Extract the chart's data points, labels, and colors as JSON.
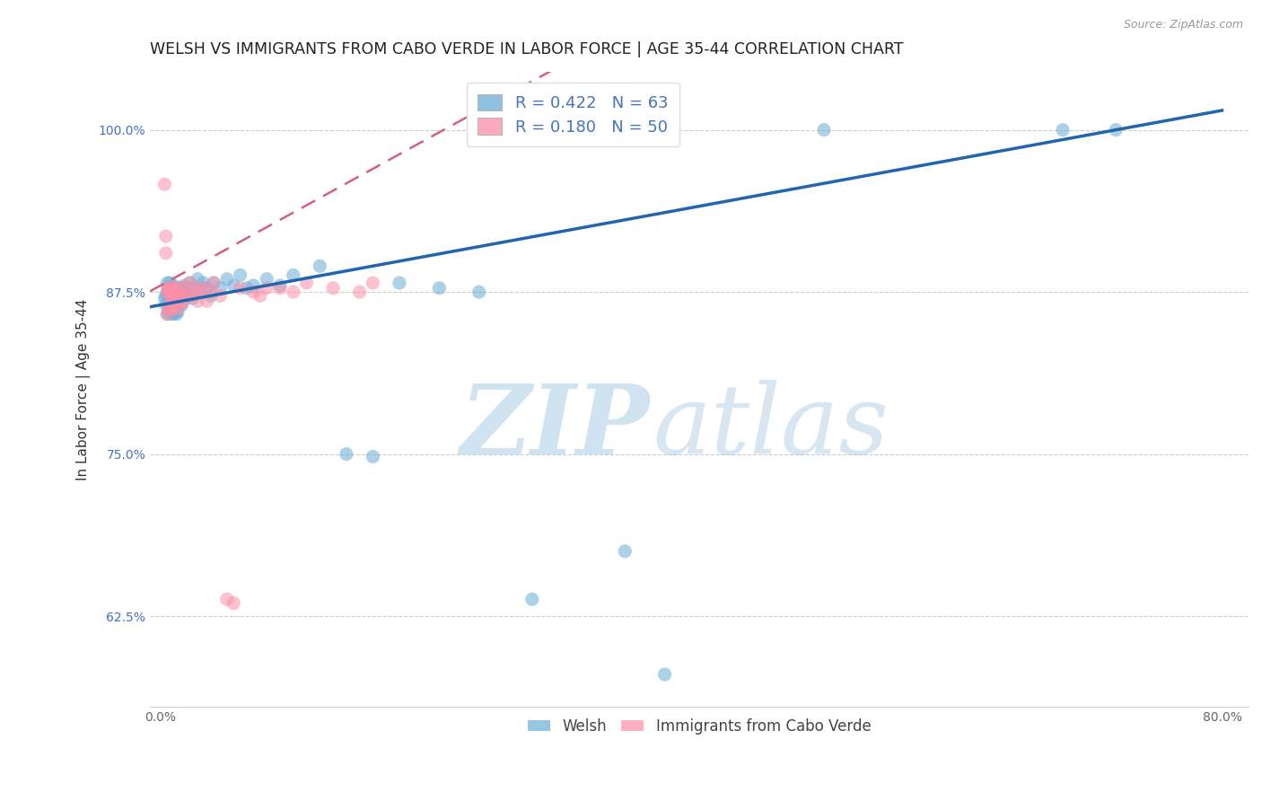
{
  "title": "WELSH VS IMMIGRANTS FROM CABO VERDE IN LABOR FORCE | AGE 35-44 CORRELATION CHART",
  "source": "Source: ZipAtlas.com",
  "ylabel": "In Labor Force | Age 35-44",
  "xlim": [
    -0.008,
    0.82
  ],
  "ylim": [
    0.555,
    1.045
  ],
  "yticks": [
    0.625,
    0.75,
    0.875,
    1.0
  ],
  "ytick_labels": [
    "62.5%",
    "75.0%",
    "87.5%",
    "100.0%"
  ],
  "xticks": [
    0.0,
    0.1,
    0.2,
    0.3,
    0.4,
    0.5,
    0.6,
    0.7,
    0.8
  ],
  "xtick_labels": [
    "0.0%",
    "",
    "",
    "",
    "",
    "",
    "",
    "",
    "80.0%"
  ],
  "welsh_color": "#6baed6",
  "cabo_color": "#fc8fa8",
  "welsh_line_color": "#2166ac",
  "cabo_line_color": "#d46080",
  "welsh_R": 0.422,
  "welsh_N": 63,
  "cabo_R": 0.18,
  "cabo_N": 50,
  "background_color": "#ffffff",
  "grid_color": "#cccccc",
  "title_fontsize": 12.5,
  "axis_label_fontsize": 11,
  "tick_fontsize": 10,
  "legend_fontsize": 13,
  "watermark_color": "#ccdff0",
  "source_color": "#999999",
  "legend_text_color": "#4472c4",
  "ytick_color": "#4472c4",
  "welsh_x_manual": [
    0.003,
    0.004,
    0.004,
    0.005,
    0.005,
    0.005,
    0.006,
    0.006,
    0.006,
    0.007,
    0.007,
    0.007,
    0.008,
    0.008,
    0.008,
    0.009,
    0.009,
    0.01,
    0.01,
    0.01,
    0.011,
    0.011,
    0.012,
    0.012,
    0.013,
    0.013,
    0.014,
    0.015,
    0.016,
    0.017,
    0.018,
    0.019,
    0.02,
    0.022,
    0.024,
    0.026,
    0.028,
    0.03,
    0.032,
    0.035,
    0.038,
    0.04,
    0.045,
    0.05,
    0.055,
    0.06,
    0.065,
    0.07,
    0.08,
    0.09,
    0.1,
    0.12,
    0.14,
    0.16,
    0.18,
    0.21,
    0.24,
    0.28,
    0.35,
    0.38,
    0.5,
    0.68,
    0.72
  ],
  "welsh_y_manual": [
    0.87,
    0.865,
    0.872,
    0.858,
    0.875,
    0.882,
    0.86,
    0.872,
    0.878,
    0.865,
    0.875,
    0.882,
    0.858,
    0.868,
    0.878,
    0.862,
    0.875,
    0.858,
    0.87,
    0.88,
    0.862,
    0.875,
    0.858,
    0.872,
    0.86,
    0.875,
    0.87,
    0.878,
    0.865,
    0.875,
    0.88,
    0.87,
    0.878,
    0.882,
    0.87,
    0.878,
    0.885,
    0.875,
    0.882,
    0.878,
    0.872,
    0.882,
    0.878,
    0.885,
    0.88,
    0.888,
    0.878,
    0.88,
    0.885,
    0.88,
    0.888,
    0.895,
    0.75,
    0.748,
    0.882,
    0.878,
    0.875,
    0.638,
    0.675,
    0.58,
    1.0,
    1.0,
    1.0
  ],
  "cabo_x_manual": [
    0.003,
    0.004,
    0.004,
    0.005,
    0.005,
    0.006,
    0.006,
    0.006,
    0.007,
    0.007,
    0.008,
    0.008,
    0.008,
    0.009,
    0.009,
    0.01,
    0.01,
    0.011,
    0.011,
    0.012,
    0.012,
    0.013,
    0.014,
    0.015,
    0.016,
    0.017,
    0.018,
    0.02,
    0.022,
    0.024,
    0.026,
    0.028,
    0.03,
    0.032,
    0.035,
    0.038,
    0.04,
    0.045,
    0.05,
    0.055,
    0.06,
    0.07,
    0.075,
    0.08,
    0.09,
    0.1,
    0.11,
    0.13,
    0.15,
    0.16
  ],
  "cabo_y_manual": [
    0.958,
    0.918,
    0.905,
    0.875,
    0.858,
    0.875,
    0.862,
    0.878,
    0.878,
    0.865,
    0.875,
    0.862,
    0.87,
    0.878,
    0.862,
    0.875,
    0.865,
    0.87,
    0.878,
    0.862,
    0.875,
    0.868,
    0.878,
    0.865,
    0.872,
    0.868,
    0.878,
    0.872,
    0.882,
    0.872,
    0.878,
    0.868,
    0.875,
    0.878,
    0.868,
    0.875,
    0.882,
    0.872,
    0.638,
    0.635,
    0.878,
    0.875,
    0.872,
    0.878,
    0.878,
    0.875,
    0.882,
    0.878,
    0.875,
    0.882
  ]
}
